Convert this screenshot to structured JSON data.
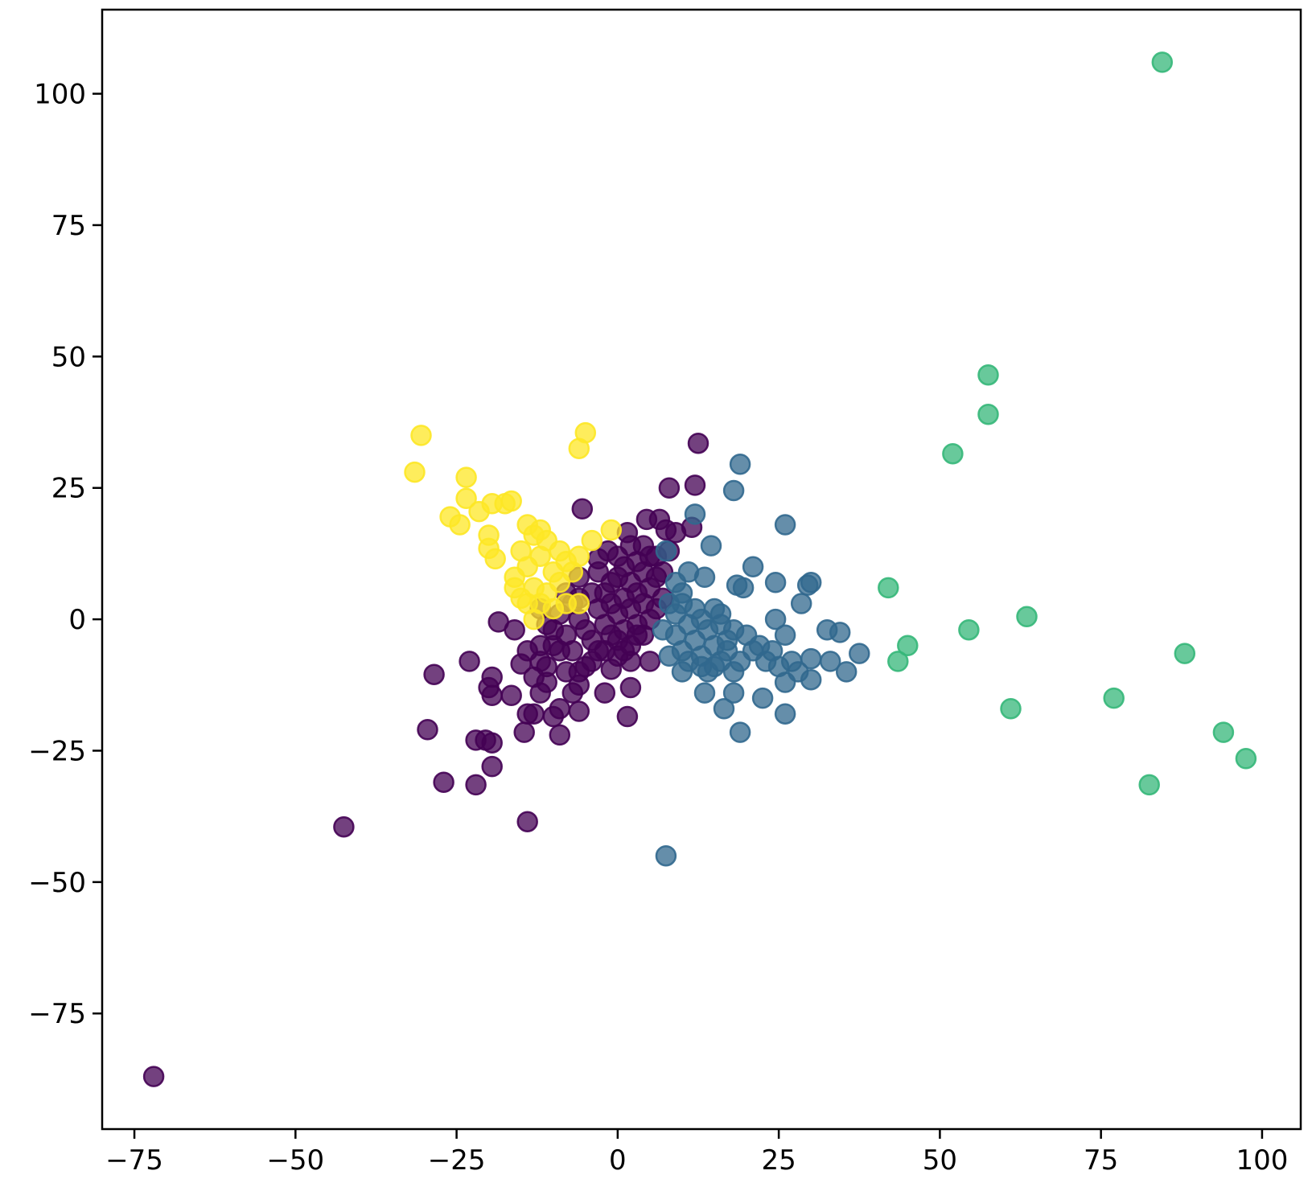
{
  "chart_data": {
    "type": "scatter",
    "title": "",
    "xlabel": "",
    "ylabel": "",
    "xlim": [
      -80,
      106
    ],
    "ylim": [
      -97,
      116
    ],
    "grid": false,
    "legend": "none",
    "x_ticks": [
      {
        "value": -75,
        "label": "−75"
      },
      {
        "value": -50,
        "label": "−50"
      },
      {
        "value": -25,
        "label": "−25"
      },
      {
        "value": 0,
        "label": "0"
      },
      {
        "value": 25,
        "label": "25"
      },
      {
        "value": 50,
        "label": "50"
      },
      {
        "value": 75,
        "label": "75"
      },
      {
        "value": 100,
        "label": "100"
      }
    ],
    "y_ticks": [
      {
        "value": -75,
        "label": "−75"
      },
      {
        "value": -50,
        "label": "−50"
      },
      {
        "value": -25,
        "label": "−25"
      },
      {
        "value": 0,
        "label": "0"
      },
      {
        "value": 25,
        "label": "25"
      },
      {
        "value": 50,
        "label": "50"
      },
      {
        "value": 75,
        "label": "75"
      },
      {
        "value": 100,
        "label": "100"
      }
    ],
    "series": [
      {
        "color": "#440154",
        "points": [
          [
            -72,
            -87
          ],
          [
            -42.5,
            -39.5
          ],
          [
            -14,
            -38.5
          ],
          [
            -27,
            -31
          ],
          [
            -22,
            -31.5
          ],
          [
            -19.5,
            -28
          ],
          [
            -29.5,
            -21
          ],
          [
            -22,
            -23
          ],
          [
            -20.5,
            -23
          ],
          [
            -19.5,
            -23.5
          ],
          [
            -14.5,
            -21.5
          ],
          [
            -9,
            -22
          ],
          [
            -14,
            -18
          ],
          [
            -13,
            -18
          ],
          [
            -10,
            -18.5
          ],
          [
            -6,
            -17.5
          ],
          [
            -9,
            -17
          ],
          [
            1.5,
            -18.5
          ],
          [
            -28.5,
            -10.5
          ],
          [
            -23,
            -8
          ],
          [
            -19.5,
            -11
          ],
          [
            -19.5,
            -14.5
          ],
          [
            -16.5,
            -14.5
          ],
          [
            -20,
            -13
          ],
          [
            -15,
            -8.5
          ],
          [
            -11,
            -12
          ],
          [
            -12,
            -14
          ],
          [
            -7,
            -14
          ],
          [
            -6,
            -12.5
          ],
          [
            -2,
            -14
          ],
          [
            2,
            -13
          ],
          [
            -1,
            -9.5
          ],
          [
            5,
            -8
          ],
          [
            2,
            -8
          ],
          [
            -18.5,
            -0.5
          ],
          [
            -16,
            -2
          ],
          [
            -12,
            2
          ],
          [
            -5.5,
            21
          ],
          [
            4.5,
            19
          ],
          [
            6.5,
            19
          ],
          [
            8,
            25
          ],
          [
            12,
            25.5
          ],
          [
            12.5,
            33.5
          ],
          [
            11.5,
            17.5
          ],
          [
            7.5,
            17
          ],
          [
            9,
            16.5
          ],
          [
            1.5,
            16.5
          ],
          [
            8,
            13
          ],
          [
            -1.5,
            13
          ],
          [
            -3,
            11.5
          ],
          [
            -6,
            8
          ],
          [
            -10,
            -5
          ],
          [
            -12,
            -8
          ],
          [
            -8,
            -3
          ],
          [
            -7,
            -6
          ],
          [
            -5,
            -2
          ],
          [
            -5,
            -9
          ],
          [
            -4,
            -4
          ],
          [
            -3,
            2
          ],
          [
            -3,
            -6
          ],
          [
            -2,
            -1
          ],
          [
            -2,
            5
          ],
          [
            -1,
            -3
          ],
          [
            -1,
            3
          ],
          [
            0,
            -7
          ],
          [
            0,
            1
          ],
          [
            0,
            8
          ],
          [
            1,
            -2
          ],
          [
            1,
            4
          ],
          [
            1,
            10
          ],
          [
            2,
            -5
          ],
          [
            2,
            2
          ],
          [
            2,
            7
          ],
          [
            3,
            -1
          ],
          [
            3,
            5
          ],
          [
            3,
            11
          ],
          [
            4,
            -3
          ],
          [
            4,
            3
          ],
          [
            4,
            9
          ],
          [
            5,
            0
          ],
          [
            5,
            6
          ],
          [
            5,
            12
          ],
          [
            6,
            2
          ],
          [
            6,
            8
          ],
          [
            -3,
            9
          ],
          [
            -4,
            5
          ],
          [
            -6,
            0
          ],
          [
            -7,
            3
          ],
          [
            -8,
            -10
          ],
          [
            -9,
            -6
          ],
          [
            -10,
            -2
          ],
          [
            -11,
            -9
          ],
          [
            -12,
            -5
          ],
          [
            -13,
            -11
          ],
          [
            -6,
            -10
          ],
          [
            -4,
            -8
          ],
          [
            -2,
            -6
          ],
          [
            0,
            -4
          ],
          [
            1,
            -6
          ],
          [
            3,
            -3
          ],
          [
            -1,
            7
          ],
          [
            0,
            12
          ],
          [
            2,
            14
          ],
          [
            4,
            14
          ],
          [
            6,
            12
          ],
          [
            7,
            9
          ],
          [
            7,
            4
          ],
          [
            -9,
            1
          ],
          [
            -11,
            -1
          ],
          [
            -8,
            5
          ],
          [
            -6,
            4
          ],
          [
            -14,
            -6
          ]
        ]
      },
      {
        "color": "#31688e",
        "points": [
          [
            7.5,
            -45
          ],
          [
            19,
            29.5
          ],
          [
            18,
            24.5
          ],
          [
            12,
            20
          ],
          [
            26,
            18
          ],
          [
            14.5,
            14
          ],
          [
            21,
            10
          ],
          [
            7.5,
            13
          ],
          [
            13.5,
            8
          ],
          [
            18.5,
            6.5
          ],
          [
            19.5,
            6
          ],
          [
            24.5,
            7
          ],
          [
            29.5,
            6.5
          ],
          [
            30,
            7
          ],
          [
            28.5,
            3
          ],
          [
            24.5,
            0
          ],
          [
            26,
            -3
          ],
          [
            32.5,
            -2
          ],
          [
            34.5,
            -2.5
          ],
          [
            37.5,
            -6.5
          ],
          [
            30,
            -7.5
          ],
          [
            33,
            -8
          ],
          [
            35.5,
            -10
          ],
          [
            30,
            -11.5
          ],
          [
            26,
            -12
          ],
          [
            26,
            -18
          ],
          [
            22.5,
            -15
          ],
          [
            18,
            -14
          ],
          [
            16.5,
            -17
          ],
          [
            13.5,
            -14
          ],
          [
            19,
            -21.5
          ],
          [
            10,
            -10
          ],
          [
            13,
            -9
          ],
          [
            16,
            -8
          ],
          [
            17,
            -4
          ],
          [
            20,
            -3
          ],
          [
            22,
            -5
          ],
          [
            24,
            -6
          ],
          [
            27,
            -8
          ],
          [
            28,
            -10
          ],
          [
            12,
            -4
          ],
          [
            14,
            -2
          ],
          [
            15,
            -5
          ],
          [
            9,
            -3
          ],
          [
            10,
            -6
          ],
          [
            11,
            -1
          ],
          [
            12,
            2
          ],
          [
            13,
            -7
          ],
          [
            16,
            1
          ],
          [
            17,
            -6
          ],
          [
            18,
            -2
          ],
          [
            8,
            -7
          ],
          [
            9,
            1
          ],
          [
            10,
            3
          ],
          [
            11,
            -8
          ],
          [
            14,
            -10
          ],
          [
            15,
            2
          ],
          [
            16,
            -1
          ],
          [
            19,
            -8
          ],
          [
            21,
            -6
          ],
          [
            23,
            -8
          ],
          [
            25,
            -9
          ],
          [
            10,
            5
          ],
          [
            11,
            9
          ],
          [
            9,
            7
          ],
          [
            7,
            -2
          ],
          [
            8,
            3
          ],
          [
            13,
            0
          ],
          [
            15,
            -9
          ],
          [
            18,
            -10
          ]
        ]
      },
      {
        "color": "#35b779",
        "points": [
          [
            84.5,
            106
          ],
          [
            57.5,
            46.5
          ],
          [
            57.5,
            39
          ],
          [
            52,
            31.5
          ],
          [
            42,
            6
          ],
          [
            45,
            -5
          ],
          [
            43.5,
            -8
          ],
          [
            54.5,
            -2
          ],
          [
            63.5,
            0.5
          ],
          [
            61,
            -17
          ],
          [
            77,
            -15
          ],
          [
            88,
            -6.5
          ],
          [
            94,
            -21.5
          ],
          [
            97.5,
            -26.5
          ],
          [
            82.5,
            -31.5
          ]
        ]
      },
      {
        "color": "#fde725",
        "points": [
          [
            -30.5,
            35
          ],
          [
            -31.5,
            28
          ],
          [
            -5,
            35.5
          ],
          [
            -6,
            32.5
          ],
          [
            -23.5,
            27
          ],
          [
            -23.5,
            23
          ],
          [
            -26,
            19.5
          ],
          [
            -24.5,
            18
          ],
          [
            -21.5,
            20.5
          ],
          [
            -19.5,
            22
          ],
          [
            -17.5,
            22
          ],
          [
            -16.5,
            22.5
          ],
          [
            -20,
            16
          ],
          [
            -20,
            13.5
          ],
          [
            -19,
            11.5
          ],
          [
            -14,
            18
          ],
          [
            -13,
            16
          ],
          [
            -12,
            17
          ],
          [
            -11,
            15
          ],
          [
            -9,
            13
          ],
          [
            -8,
            11
          ],
          [
            -10,
            9
          ],
          [
            -12,
            12
          ],
          [
            -14,
            10
          ],
          [
            -15,
            13
          ],
          [
            -16,
            8
          ],
          [
            -13,
            6
          ],
          [
            -11,
            5
          ],
          [
            -9,
            7
          ],
          [
            -7,
            9
          ],
          [
            -15,
            4
          ],
          [
            -12,
            3
          ],
          [
            -10,
            2
          ],
          [
            -6,
            12
          ],
          [
            -4,
            15
          ],
          [
            -1,
            17
          ],
          [
            -16,
            6
          ],
          [
            -14,
            3
          ],
          [
            -13,
            0
          ],
          [
            -8,
            3
          ],
          [
            -6,
            3
          ]
        ]
      }
    ]
  }
}
